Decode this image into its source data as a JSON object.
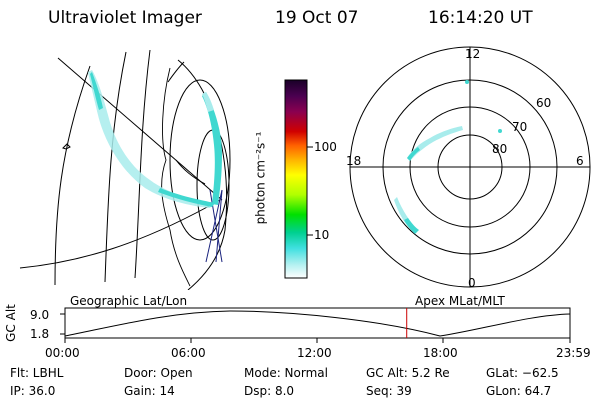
{
  "header": {
    "instrument": "Ultraviolet Imager",
    "date": "19 Oct 07",
    "time": "16:14:20 UT"
  },
  "colorbar": {
    "units_label": "photon cm⁻²s⁻¹",
    "ticks": [
      "100",
      "10"
    ],
    "colors_top_to_bottom": [
      "#1a0028",
      "#2a0040",
      "#5a0060",
      "#7a0060",
      "#a00028",
      "#d00000",
      "#ff4000",
      "#ff9000",
      "#ffc000",
      "#ffff00",
      "#d0ff00",
      "#80ff00",
      "#00e000",
      "#00d090",
      "#40e0e0",
      "#a0f0f0",
      "#ffffff"
    ]
  },
  "polar": {
    "mlt_labels": [
      "12",
      "18",
      "6",
      "0"
    ],
    "lat_labels": [
      "60",
      "70",
      "80"
    ]
  },
  "timeline": {
    "left_label": "Geographic Lat/Lon",
    "right_label": "Apex MLat/MLT",
    "y_axis_label": "GC Alt",
    "y_ticks": [
      "9.0",
      "1.8"
    ],
    "x_ticks": [
      "00:00",
      "06:00",
      "12:00",
      "18:00",
      "23:59"
    ],
    "current_time_hours": 16.24,
    "marker_color": "#cc0000"
  },
  "status": {
    "filter": "Flt: LBHL",
    "ip": "IP: 36.0",
    "door": "Door: Open",
    "gain": "Gain: 14",
    "mode": "Mode: Normal",
    "dsp": "Dsp:    8.0",
    "gc_alt": "GC Alt: 5.2 Re",
    "seq": "Seq: 39",
    "glat": "GLat: −62.5",
    "glon": "GLon:  64.7"
  },
  "colors": {
    "aurora": "#40d8d0",
    "aurora_light": "#a8ecec"
  }
}
